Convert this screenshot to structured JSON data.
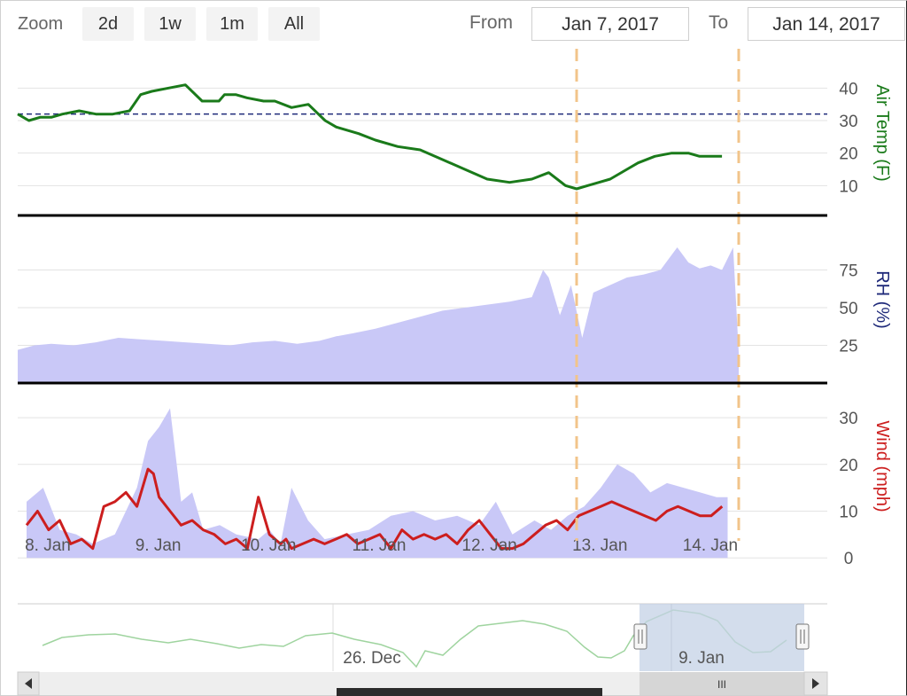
{
  "toolbar": {
    "zoom_label": "Zoom",
    "buttons": [
      "2d",
      "1w",
      "1m",
      "All"
    ],
    "from_label": "From",
    "from_value": "Jan 7, 2017",
    "to_label": "To",
    "to_value": "Jan 14, 2017"
  },
  "colors": {
    "air_temp": "#1a7a1a",
    "rh_fill": "#c9c8f7",
    "wind_line": "#cc1e1e",
    "wind_gust_fill": "#c9c8f7",
    "reference_line": "#1f2a7a",
    "selection_line": "#f2c48a",
    "navigator_line": "#9fd49f",
    "navigator_mask": "#c4d1e6"
  },
  "chart_data": [
    {
      "type": "line",
      "ylabel": "Air Temp (F)",
      "yticks": [
        10,
        20,
        30,
        40
      ],
      "ylim": [
        3,
        48
      ],
      "xlim": [
        0,
        6.45
      ],
      "reference_line": 32,
      "series": [
        {
          "x": [
            0,
            0.1,
            0.2,
            0.3,
            0.4,
            0.55,
            0.7,
            0.85,
            1.0,
            1.1,
            1.2,
            1.35,
            1.5,
            1.65,
            1.8,
            1.85,
            1.95,
            2.05,
            2.2,
            2.3,
            2.45,
            2.6,
            2.75,
            2.85,
            3.05,
            3.2,
            3.4,
            3.6,
            3.8,
            4.0,
            4.2,
            4.4,
            4.6,
            4.75,
            4.9,
            5.0,
            5.1,
            5.2,
            5.3,
            5.45,
            5.55,
            5.7,
            5.85,
            6.0,
            6.1,
            6.2,
            6.3
          ],
          "y": [
            32,
            30,
            31,
            31,
            32,
            33,
            32,
            32,
            33,
            38,
            39,
            40,
            41,
            36,
            36,
            38,
            38,
            37,
            36,
            36,
            34,
            35,
            30,
            28,
            26,
            24,
            22,
            21,
            18,
            15,
            12,
            11,
            12,
            14,
            10,
            9,
            10,
            11,
            12,
            15,
            17,
            19,
            20,
            20,
            19,
            19,
            19
          ]
        }
      ]
    },
    {
      "type": "area",
      "ylabel": "RH (%)",
      "yticks": [
        25,
        50,
        75
      ],
      "ylim": [
        0,
        100
      ],
      "xlim": [
        0,
        6.45
      ],
      "series": [
        {
          "x": [
            0,
            0.15,
            0.3,
            0.5,
            0.7,
            0.9,
            1.1,
            1.3,
            1.5,
            1.7,
            1.9,
            2.1,
            2.3,
            2.5,
            2.7,
            2.85,
            3.0,
            3.2,
            3.4,
            3.6,
            3.8,
            4.0,
            4.2,
            4.4,
            4.6,
            4.7,
            4.75,
            4.85,
            4.95,
            5.05,
            5.15,
            5.3,
            5.45,
            5.6,
            5.75,
            5.9,
            6.0,
            6.1,
            6.2,
            6.3,
            6.4,
            6.45
          ],
          "y": [
            22,
            25,
            26,
            25,
            27,
            30,
            29,
            28,
            27,
            26,
            25,
            27,
            28,
            26,
            28,
            31,
            33,
            36,
            40,
            44,
            48,
            50,
            52,
            54,
            57,
            75,
            70,
            45,
            65,
            30,
            60,
            65,
            70,
            72,
            75,
            90,
            80,
            76,
            78,
            75,
            90,
            20
          ]
        }
      ]
    },
    {
      "type": "line",
      "ylabel": "Wind (mph)",
      "yticks": [
        0,
        10,
        20,
        30
      ],
      "ylim": [
        -3,
        34
      ],
      "xlim": [
        -0.08,
        6.45
      ],
      "xticks": [
        "8. Jan",
        "9. Jan",
        "10. Jan",
        "11. Jan",
        "12. Jan",
        "13. Jan",
        "14. Jan"
      ],
      "series": [
        {
          "type": "area",
          "x": [
            0,
            0.15,
            0.3,
            0.45,
            0.6,
            0.8,
            1.0,
            1.1,
            1.2,
            1.3,
            1.4,
            1.5,
            1.6,
            1.75,
            1.9,
            2.1,
            2.2,
            2.3,
            2.4,
            2.55,
            2.7,
            2.9,
            3.1,
            3.3,
            3.5,
            3.7,
            3.9,
            4.1,
            4.25,
            4.4,
            4.6,
            4.75,
            4.9,
            5.05,
            5.2,
            5.35,
            5.5,
            5.65,
            5.8,
            5.95,
            6.1,
            6.25,
            6.35
          ],
          "y": [
            12,
            15,
            6,
            5,
            3,
            5,
            15,
            25,
            28,
            32,
            12,
            14,
            6,
            7,
            5,
            4,
            6,
            3,
            15,
            8,
            4,
            5,
            6,
            9,
            10,
            8,
            9,
            7,
            12,
            5,
            8,
            6,
            9,
            11,
            15,
            20,
            18,
            14,
            16,
            15,
            14,
            13,
            13
          ]
        },
        {
          "x": [
            0,
            0.1,
            0.2,
            0.3,
            0.4,
            0.5,
            0.6,
            0.7,
            0.8,
            0.9,
            1.0,
            1.1,
            1.15,
            1.2,
            1.3,
            1.4,
            1.5,
            1.6,
            1.7,
            1.8,
            1.9,
            2.0,
            2.1,
            2.2,
            2.3,
            2.35,
            2.4,
            2.5,
            2.6,
            2.7,
            2.8,
            2.9,
            3.0,
            3.1,
            3.2,
            3.3,
            3.4,
            3.5,
            3.6,
            3.7,
            3.8,
            3.9,
            4.0,
            4.1,
            4.2,
            4.3,
            4.4,
            4.5,
            4.6,
            4.7,
            4.8,
            4.9,
            5.0,
            5.1,
            5.2,
            5.3,
            5.4,
            5.5,
            5.6,
            5.7,
            5.8,
            5.9,
            6.0,
            6.1,
            6.2,
            6.3
          ],
          "y": [
            7,
            10,
            6,
            8,
            3,
            4,
            2,
            11,
            12,
            14,
            11,
            19,
            18,
            13,
            10,
            7,
            8,
            6,
            5,
            3,
            4,
            2,
            13,
            5,
            3,
            4,
            2,
            3,
            4,
            3,
            4,
            5,
            3,
            4,
            5,
            2,
            6,
            4,
            5,
            4,
            5,
            3,
            6,
            8,
            5,
            2,
            2,
            3,
            5,
            7,
            8,
            6,
            9,
            10,
            11,
            12,
            11,
            10,
            9,
            8,
            10,
            11,
            10,
            9,
            9,
            11
          ]
        }
      ]
    }
  ],
  "navigator": {
    "labels": [
      "26. Dec",
      "9. Jan"
    ],
    "scroll_thumb": "III"
  }
}
